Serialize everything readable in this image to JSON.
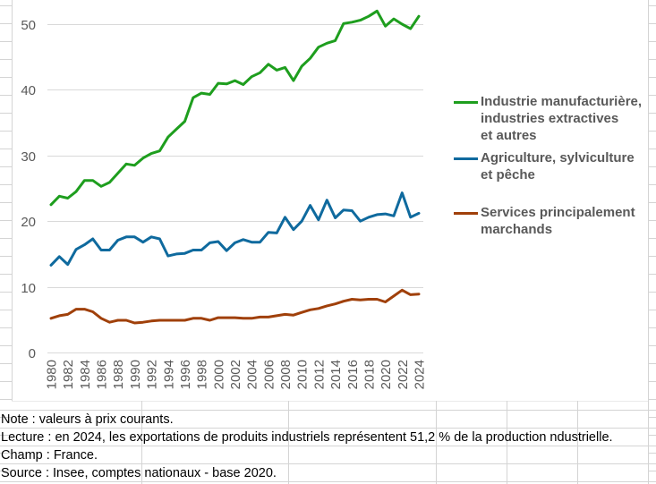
{
  "chart_data": {
    "type": "line",
    "title": "",
    "xlabel": "",
    "ylabel": "",
    "ylim": [
      0,
      55
    ],
    "yticks": [
      0,
      10,
      20,
      30,
      40,
      50
    ],
    "grid": true,
    "legend_position": "right",
    "x": [
      1980,
      1981,
      1982,
      1983,
      1984,
      1985,
      1986,
      1987,
      1988,
      1989,
      1990,
      1991,
      1992,
      1993,
      1994,
      1995,
      1996,
      1997,
      1998,
      1999,
      2000,
      2001,
      2002,
      2003,
      2004,
      2005,
      2006,
      2007,
      2008,
      2009,
      2010,
      2011,
      2012,
      2013,
      2014,
      2015,
      2016,
      2017,
      2018,
      2019,
      2020,
      2021,
      2022,
      2023,
      2024
    ],
    "xtick_labels": [
      "1980",
      "1982",
      "1984",
      "1986",
      "1988",
      "1990",
      "1992",
      "1994",
      "1996",
      "1998",
      "2000",
      "2002",
      "2004",
      "2006",
      "2008",
      "2010",
      "2012",
      "2014",
      "2016",
      "2018",
      "2020",
      "2022",
      "2024"
    ],
    "series": [
      {
        "name": "Industrie manufacturière, industries extractives et autres",
        "legend_lines": [
          "Industrie manufacturière,",
          "industries extractives",
          "et autres"
        ],
        "color": "#1E9E1E",
        "values": [
          22.5,
          23.8,
          23.5,
          24.5,
          26.2,
          26.2,
          25.3,
          25.9,
          27.3,
          28.7,
          28.5,
          29.6,
          30.3,
          30.7,
          32.8,
          34.0,
          35.2,
          38.8,
          39.5,
          39.3,
          41.0,
          40.9,
          41.4,
          40.8,
          42.0,
          42.6,
          43.9,
          43.0,
          43.4,
          41.4,
          43.6,
          44.8,
          46.5,
          47.1,
          47.5,
          50.1,
          50.3,
          50.6,
          51.2,
          52.0,
          49.7,
          50.8,
          50.0,
          49.3,
          51.2
        ]
      },
      {
        "name": "Agriculture, sylviculture et pêche",
        "legend_lines": [
          "Agriculture, sylviculture",
          "et pêche"
        ],
        "color": "#0F6A9E",
        "values": [
          13.3,
          14.6,
          13.4,
          15.7,
          16.4,
          17.3,
          15.6,
          15.6,
          17.1,
          17.6,
          17.6,
          16.8,
          17.6,
          17.3,
          14.7,
          15.0,
          15.1,
          15.6,
          15.6,
          16.7,
          16.9,
          15.5,
          16.7,
          17.2,
          16.8,
          16.8,
          18.3,
          18.2,
          20.6,
          18.7,
          20.0,
          22.4,
          20.2,
          23.2,
          20.5,
          21.7,
          21.6,
          20.0,
          20.6,
          21.0,
          21.1,
          20.8,
          24.3,
          20.6,
          21.2
        ]
      },
      {
        "name": "Services principalement marchands",
        "legend_lines": [
          "Services principalement",
          "marchands"
        ],
        "color": "#A0400A",
        "values": [
          5.2,
          5.6,
          5.8,
          6.6,
          6.6,
          6.2,
          5.2,
          4.6,
          4.9,
          4.9,
          4.5,
          4.6,
          4.8,
          4.9,
          4.9,
          4.9,
          4.9,
          5.2,
          5.2,
          4.9,
          5.3,
          5.3,
          5.3,
          5.2,
          5.2,
          5.4,
          5.4,
          5.6,
          5.8,
          5.7,
          6.1,
          6.5,
          6.7,
          7.1,
          7.4,
          7.8,
          8.1,
          8.0,
          8.1,
          8.1,
          7.7,
          8.6,
          9.5,
          8.8,
          8.9
        ]
      }
    ]
  },
  "notes": {
    "note": "Note : valeurs à prix courants.",
    "lecture": "Lecture : en 2024, les exportations de produits industriels représentent 51,2 % de la production ndustrielle.",
    "champ": "Champ : France.",
    "source": "Source : Insee, comptes nationaux - base 2020."
  },
  "colors": {
    "gridline": "#D9D9D9",
    "axis_text": "#595959",
    "cell_border": "#D4D4D4"
  }
}
